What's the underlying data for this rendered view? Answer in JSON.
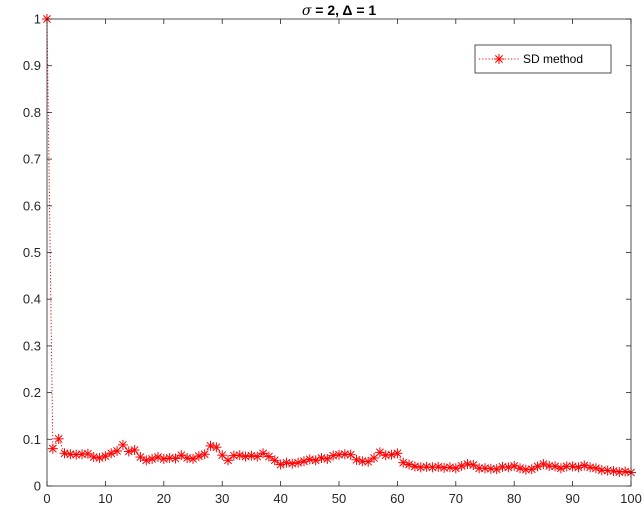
{
  "chart_data": {
    "type": "line",
    "title": "σ = 2, Δ = 1",
    "title_parts": {
      "sigma": "σ",
      "rest": " = 2, Δ = 1"
    },
    "xlabel": "",
    "ylabel": "",
    "xlim": [
      0,
      100
    ],
    "ylim": [
      0,
      1
    ],
    "xticks": [
      "0",
      "10",
      "20",
      "30",
      "40",
      "50",
      "60",
      "70",
      "80",
      "90",
      "100"
    ],
    "yticks": [
      "0",
      "0.1",
      "0.2",
      "0.3",
      "0.4",
      "0.5",
      "0.6",
      "0.7",
      "0.8",
      "0.9",
      "1"
    ],
    "grid": false,
    "legend": {
      "position": "top-right",
      "entries": [
        "SD method"
      ]
    },
    "series": [
      {
        "name": "SD method",
        "color": "#ff0000",
        "line_style": "dotted",
        "marker": "asterisk",
        "x": [
          0,
          1,
          2,
          3,
          4,
          5,
          6,
          7,
          8,
          9,
          10,
          11,
          12,
          13,
          14,
          15,
          16,
          17,
          18,
          19,
          20,
          21,
          22,
          23,
          24,
          25,
          26,
          27,
          28,
          29,
          30,
          31,
          32,
          33,
          34,
          35,
          36,
          37,
          38,
          39,
          40,
          41,
          42,
          43,
          44,
          45,
          46,
          47,
          48,
          49,
          50,
          51,
          52,
          53,
          54,
          55,
          56,
          57,
          58,
          59,
          60,
          61,
          62,
          63,
          64,
          65,
          66,
          67,
          68,
          69,
          70,
          71,
          72,
          73,
          74,
          75,
          76,
          77,
          78,
          79,
          80,
          81,
          82,
          83,
          84,
          85,
          86,
          87,
          88,
          89,
          90,
          91,
          92,
          93,
          94,
          95,
          96,
          97,
          98,
          99,
          100
        ],
        "y": [
          1.0,
          0.08,
          0.101,
          0.07,
          0.068,
          0.067,
          0.068,
          0.069,
          0.062,
          0.06,
          0.064,
          0.07,
          0.075,
          0.088,
          0.074,
          0.077,
          0.062,
          0.055,
          0.058,
          0.062,
          0.058,
          0.06,
          0.059,
          0.066,
          0.06,
          0.058,
          0.064,
          0.068,
          0.086,
          0.083,
          0.066,
          0.055,
          0.065,
          0.066,
          0.063,
          0.065,
          0.063,
          0.07,
          0.063,
          0.055,
          0.046,
          0.05,
          0.048,
          0.05,
          0.053,
          0.057,
          0.055,
          0.06,
          0.058,
          0.065,
          0.067,
          0.068,
          0.067,
          0.056,
          0.053,
          0.052,
          0.06,
          0.072,
          0.066,
          0.067,
          0.07,
          0.05,
          0.046,
          0.042,
          0.04,
          0.041,
          0.04,
          0.041,
          0.039,
          0.04,
          0.038,
          0.043,
          0.047,
          0.045,
          0.038,
          0.038,
          0.037,
          0.036,
          0.041,
          0.04,
          0.043,
          0.038,
          0.035,
          0.036,
          0.042,
          0.047,
          0.043,
          0.042,
          0.038,
          0.042,
          0.042,
          0.04,
          0.044,
          0.04,
          0.038,
          0.034,
          0.033,
          0.032,
          0.03,
          0.031,
          0.029
        ]
      }
    ]
  }
}
